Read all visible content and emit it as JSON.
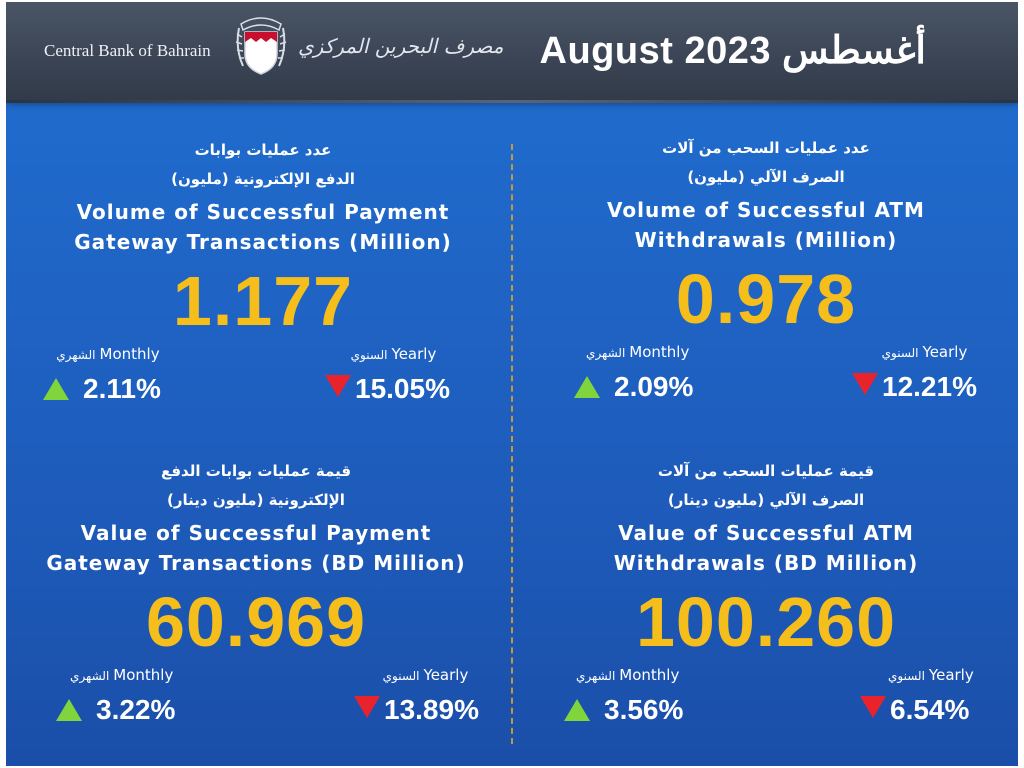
{
  "header": {
    "bank_name_en": "Central Bank of Bahrain",
    "bank_name_ar": "مصرف البحرين المركزي",
    "period": "August 2023 أغسطس"
  },
  "colors": {
    "accent_value": "#f5be1a",
    "up_arrow": "#7fd53b",
    "down_arrow": "#e8232c",
    "background": "#1f63c4",
    "header": "#3a4454"
  },
  "panels": {
    "pg_volume": {
      "title_ar_1": "عدد عمليات بوابات",
      "title_ar_2": "الدفع الإلكترونية (مليون)",
      "title_en_1": "Volume of Successful Payment",
      "title_en_2": "Gateway Transactions (Million)",
      "value": "1.177",
      "monthly_label": "Monthly",
      "monthly_label_ar": "الشهري",
      "monthly_value": "2.11%",
      "monthly_direction": "up",
      "yearly_label": "Yearly",
      "yearly_label_ar": "السنوي",
      "yearly_value": "15.05%",
      "yearly_direction": "down"
    },
    "atm_volume": {
      "title_ar_1": "عدد عمليات السحب من آلات",
      "title_ar_2": "الصرف الآلي (مليون)",
      "title_en_1": "Volume of  Successful ATM",
      "title_en_2": "Withdrawals (Million)",
      "value": "0.978",
      "monthly_label": "Monthly",
      "monthly_label_ar": "الشهري",
      "monthly_value": "2.09%",
      "monthly_direction": "up",
      "yearly_label": "Yearly",
      "yearly_label_ar": "السنوي",
      "yearly_value": "12.21%",
      "yearly_direction": "down"
    },
    "pg_value": {
      "title_ar_1": "قيمة عمليات بوابات الدفع",
      "title_ar_2": "الإلكترونية (مليون دينار)",
      "title_en_1": "Value of Successful Payment",
      "title_en_2": "Gateway Transactions (BD Million)",
      "value": "60.969",
      "monthly_label": "Monthly",
      "monthly_label_ar": "الشهري",
      "monthly_value": "3.22%",
      "monthly_direction": "up",
      "yearly_label": "Yearly",
      "yearly_label_ar": "السنوي",
      "yearly_value": "13.89%",
      "yearly_direction": "down"
    },
    "atm_value": {
      "title_ar_1": "قيمة عمليات السحب من آلات",
      "title_ar_2": "الصرف الآلي (مليون دينار)",
      "title_en_1": "Value of Successful ATM",
      "title_en_2": "Withdrawals (BD Million)",
      "value": "100.260",
      "monthly_label": "Monthly",
      "monthly_label_ar": "الشهري",
      "monthly_value": "3.56%",
      "monthly_direction": "up",
      "yearly_label": "Yearly",
      "yearly_label_ar": "السنوي",
      "yearly_value": "6.54%",
      "yearly_direction": "down"
    }
  }
}
